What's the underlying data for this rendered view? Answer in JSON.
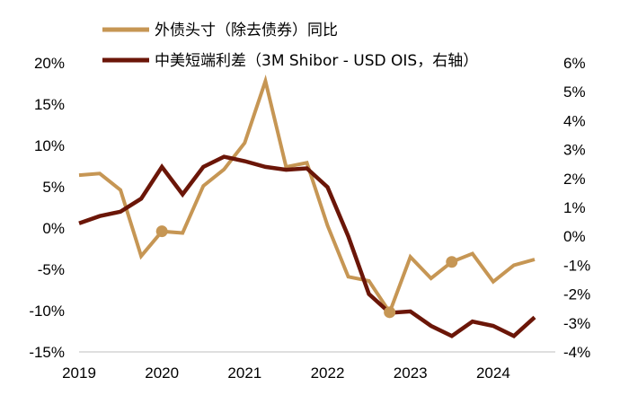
{
  "chart_data": {
    "type": "line",
    "title": "",
    "xlabel": "",
    "x_ticks": [
      "2019",
      "2020",
      "2021",
      "2022",
      "2023",
      "2024"
    ],
    "x_range": [
      2019.0,
      2024.75
    ],
    "y_left": {
      "ticks": [
        "20%",
        "15%",
        "10%",
        "5%",
        "0%",
        "-5%",
        "-10%",
        "-15%"
      ],
      "range": [
        -15,
        20
      ]
    },
    "y_right": {
      "ticks": [
        "6%",
        "5%",
        "4%",
        "3%",
        "2%",
        "1%",
        "0%",
        "-1%",
        "-2%",
        "-3%",
        "-4%"
      ],
      "range": [
        -4,
        6
      ]
    },
    "legend_position": "top-left",
    "series": [
      {
        "name": "外债头寸（除去债券）同比",
        "axis": "left",
        "color": "#C69654",
        "x": [
          2019.0,
          2019.25,
          2019.5,
          2019.75,
          2020.0,
          2020.25,
          2020.5,
          2020.75,
          2021.0,
          2021.25,
          2021.5,
          2021.75,
          2022.0,
          2022.25,
          2022.5,
          2022.75,
          2023.0,
          2023.25,
          2023.5,
          2023.75,
          2024.0,
          2024.25,
          2024.5
        ],
        "values": [
          6.4,
          6.6,
          4.6,
          -3.4,
          -0.4,
          -0.6,
          5.1,
          7.1,
          10.3,
          17.8,
          7.4,
          7.9,
          0.3,
          -5.9,
          -6.4,
          -10.2,
          -3.5,
          -6.1,
          -4.1,
          -3.1,
          -6.5,
          -4.5,
          -3.8
        ],
        "markers": [
          {
            "x": 2020.0,
            "value": -0.4
          },
          {
            "x": 2022.75,
            "value": -10.2
          },
          {
            "x": 2023.5,
            "value": -4.1
          }
        ]
      },
      {
        "name": "中美短端利差（3M Shibor - USD OIS，右轴）",
        "axis": "right",
        "color": "#6B1608",
        "x": [
          2019.0,
          2019.25,
          2019.5,
          2019.75,
          2020.0,
          2020.25,
          2020.5,
          2020.75,
          2021.0,
          2021.25,
          2021.5,
          2021.75,
          2022.0,
          2022.25,
          2022.5,
          2022.75,
          2023.0,
          2023.25,
          2023.5,
          2023.75,
          2024.0,
          2024.25,
          2024.5
        ],
        "values": [
          0.45,
          0.7,
          0.85,
          1.3,
          2.4,
          1.45,
          2.4,
          2.75,
          2.6,
          2.4,
          2.3,
          2.35,
          1.7,
          0.0,
          -2.0,
          -2.65,
          -2.6,
          -3.1,
          -3.45,
          -2.95,
          -3.1,
          -3.45,
          -2.8
        ]
      }
    ]
  }
}
